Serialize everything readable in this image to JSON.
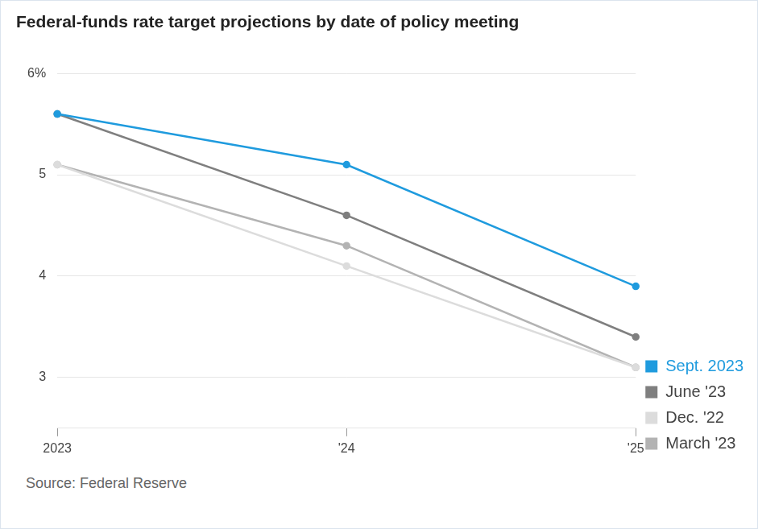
{
  "chart_data": {
    "type": "line",
    "title": "Federal-funds rate target projections by date of policy meeting",
    "source": "Source: Federal Reserve",
    "categories": [
      "2023",
      "'24",
      "'25"
    ],
    "series": [
      {
        "name": "Sept. 2023",
        "color": "#1f9bde",
        "values": [
          5.6,
          5.1,
          3.9
        ]
      },
      {
        "name": "June '23",
        "color": "#7f7f7f",
        "values": [
          5.6,
          4.6,
          3.4
        ]
      },
      {
        "name": "Dec. '22",
        "color": "#dcdcdc",
        "values": [
          5.1,
          4.1,
          3.1
        ]
      },
      {
        "name": "March '23",
        "color": "#b3b3b3",
        "values": [
          5.1,
          4.3,
          3.1
        ]
      }
    ],
    "ylim": [
      2.5,
      6
    ],
    "yticks": [
      3,
      4,
      5,
      {
        "value": 6,
        "label": "6%"
      }
    ],
    "grid": true,
    "legend": "right",
    "marker": "circle"
  }
}
